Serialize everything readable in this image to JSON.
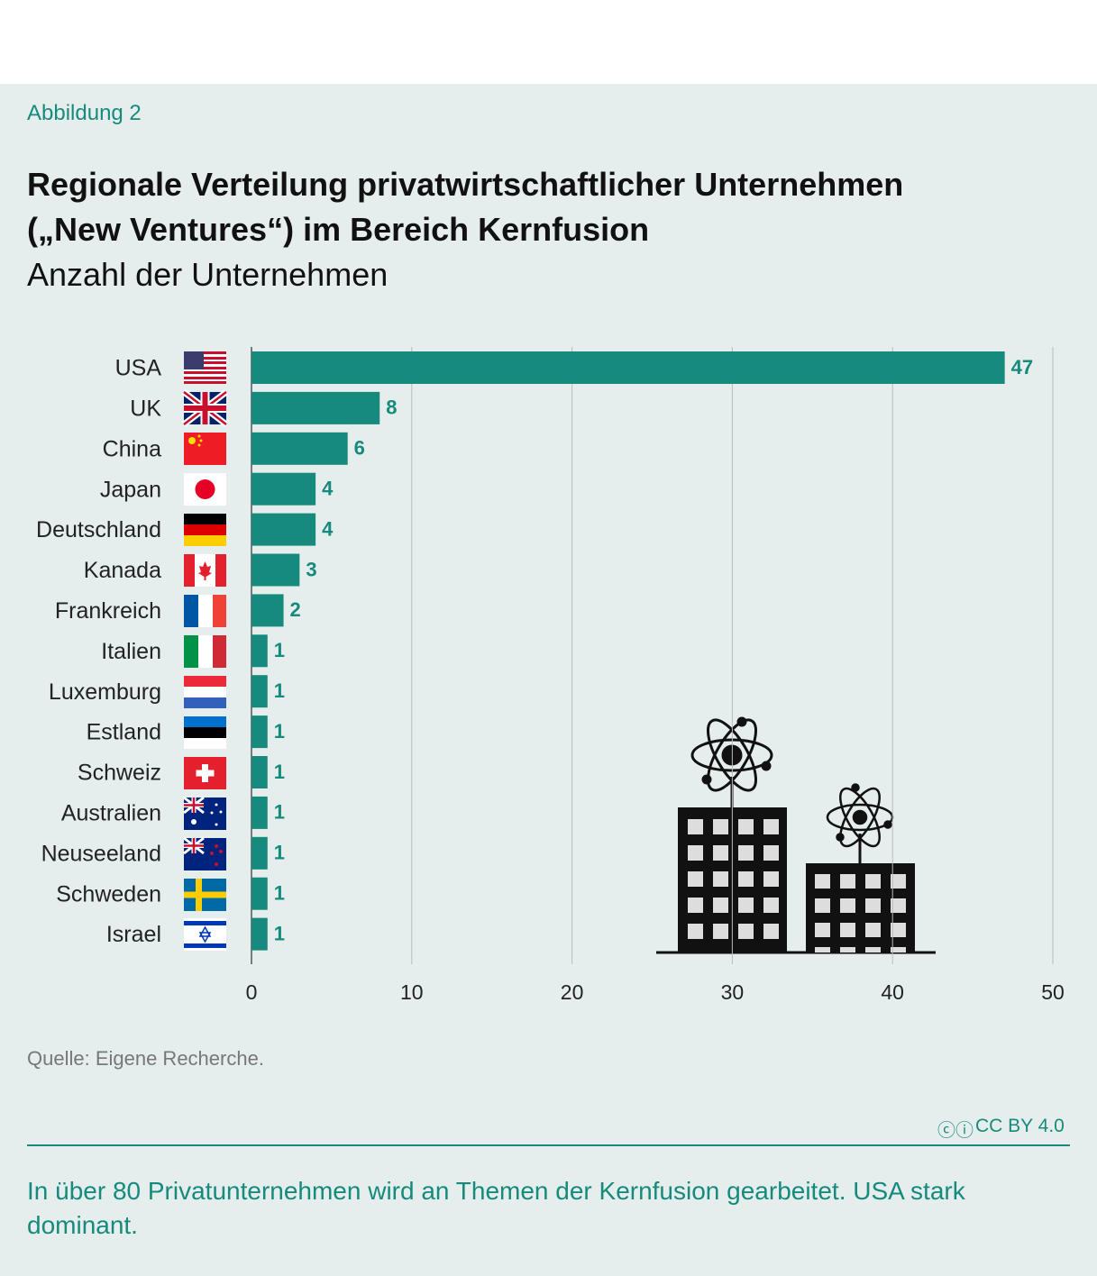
{
  "figure_label": "Abbildung 2",
  "chart_data": {
    "type": "bar",
    "orientation": "horizontal",
    "title": "Regionale Verteilung privatwirtschaftlicher Unternehmen („New Ventures“) im Bereich Kernfusion",
    "subtitle": "Anzahl der Unternehmen",
    "categories": [
      "USA",
      "UK",
      "China",
      "Japan",
      "Deutschland",
      "Kanada",
      "Frankreich",
      "Italien",
      "Luxemburg",
      "Estland",
      "Schweiz",
      "Australien",
      "Neuseeland",
      "Schweden",
      "Israel"
    ],
    "values": [
      47,
      8,
      6,
      4,
      4,
      3,
      2,
      1,
      1,
      1,
      1,
      1,
      1,
      1,
      1
    ],
    "color": "#168a7c",
    "xlim": [
      0,
      50
    ],
    "xticks": [
      0,
      10,
      20,
      30,
      40,
      50
    ],
    "grid": true
  },
  "source": "Quelle: Eigene Recherche.",
  "license": "CC BY 4.0",
  "caption": "In über 80 Privatunternehmen wird an Themen der Kernfusion gearbeitet. USA stark dominant."
}
